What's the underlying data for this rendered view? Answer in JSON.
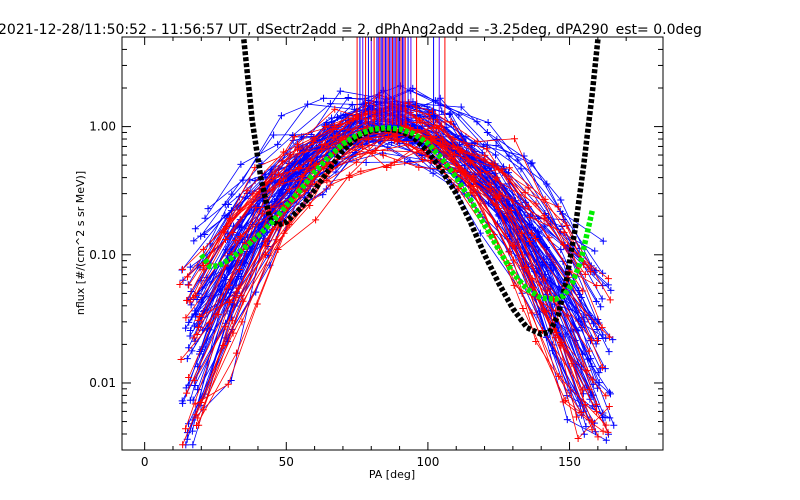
{
  "chart_data": {
    "type": "scatter",
    "title": "2021-12-28/11:50:52 - 11:56:57 UT, dSectr2add = 2, dPhAng2add = -3.25deg, dPA290_est=   0.0deg",
    "xlabel": "PA [deg]",
    "ylabel": "nflux [#/(cm^2 s sr MeV)]",
    "xlim": [
      -8,
      183
    ],
    "ylim": [
      0.003,
      5
    ],
    "yscale": "log",
    "x_ticks": [
      0,
      50,
      100,
      150
    ],
    "x_tick_labels": [
      "0",
      "50",
      "100",
      "150"
    ],
    "y_ticks": [
      0.01,
      0.1,
      1.0
    ],
    "y_tick_labels": [
      "0.01",
      "0.10",
      "1.00"
    ],
    "grid": false,
    "colors": {
      "blue": "#0000ff",
      "red": "#ff0000",
      "black": "#000000",
      "green": "#00ee00",
      "vlines": "#5a00ff"
    },
    "series": [
      {
        "color": "#000000",
        "style": "thick dashed fit",
        "x": [
          35,
          38,
          41,
          44,
          47,
          50,
          55,
          60,
          65,
          70,
          75,
          80,
          85,
          90,
          95,
          100,
          105,
          110,
          115,
          120,
          125,
          130,
          135,
          140,
          143,
          146,
          149,
          152,
          155,
          158,
          160
        ],
        "y": [
          4.8,
          1.1,
          0.4,
          0.2,
          0.17,
          0.18,
          0.23,
          0.32,
          0.46,
          0.65,
          0.83,
          0.93,
          0.96,
          0.93,
          0.82,
          0.64,
          0.45,
          0.3,
          0.18,
          0.1,
          0.06,
          0.038,
          0.027,
          0.024,
          0.025,
          0.034,
          0.065,
          0.16,
          0.5,
          1.8,
          4.8
        ]
      },
      {
        "color": "#00ee00",
        "style": "thick dashed fit",
        "x": [
          20,
          23,
          26,
          30,
          35,
          40,
          45,
          50,
          55,
          60,
          65,
          70,
          75,
          80,
          85,
          90,
          95,
          100,
          105,
          110,
          115,
          120,
          125,
          130,
          135,
          140,
          145,
          148,
          151,
          154,
          156,
          158
        ],
        "y": [
          0.1,
          0.081,
          0.082,
          0.092,
          0.112,
          0.14,
          0.18,
          0.24,
          0.32,
          0.44,
          0.58,
          0.73,
          0.86,
          0.95,
          0.98,
          0.96,
          0.88,
          0.74,
          0.56,
          0.4,
          0.27,
          0.17,
          0.11,
          0.072,
          0.054,
          0.046,
          0.045,
          0.048,
          0.06,
          0.09,
          0.14,
          0.22
        ]
      }
    ],
    "flux_curves": {
      "count_blue": 70,
      "count_red": 32,
      "marker": "+",
      "pa_range": [
        14,
        165
      ],
      "flux_range": [
        0.003,
        4
      ]
    },
    "pa_markers": [
      75,
      76,
      77,
      78,
      79,
      80,
      81,
      82,
      82.5,
      83,
      83.5,
      84,
      84.5,
      85,
      85.5,
      86,
      86.5,
      87,
      87.5,
      88,
      88.5,
      89,
      89.5,
      90,
      90.5,
      91,
      91.5,
      92,
      93,
      94,
      96,
      102,
      104,
      106
    ]
  }
}
